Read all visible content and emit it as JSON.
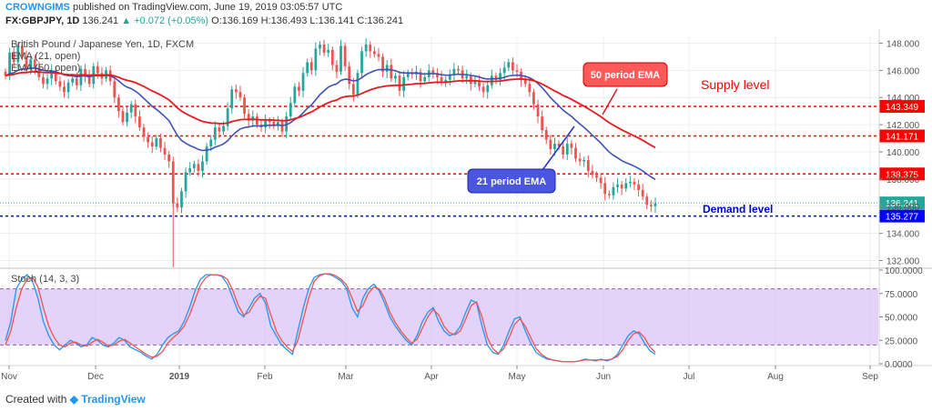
{
  "header": {
    "author": "CROWNGIMS",
    "published_text": "published on TradingView.com, June 19, 2019 03:05:57 UTC",
    "symbol": "FX:GBPJPY, 1D",
    "price": "136.241",
    "change": "▲ +0.072 (+0.05%)",
    "ohlc": "O:136.169 H:136.493 L:136.141 C:136.241"
  },
  "legend": {
    "title": "British Pound / Japanese Yen, 1D, FXCM",
    "ema_fast": "EMA (21, open)",
    "ema_slow": "EMA (50, open)"
  },
  "annotations": {
    "ema50_label": "50 period EMA",
    "ema21_label": "21 period EMA",
    "supply_label": "Supply level",
    "demand_label": "Demand level"
  },
  "colors": {
    "up": "#26a69a",
    "down": "#ef5350",
    "level_red": "#ff0000",
    "level_blue": "#0000ff",
    "ema_fast": "#3f51b5",
    "ema_slow": "#e31b23",
    "stoch_k": "#2196f3",
    "stoch_d": "#ef5350",
    "stoch_band": "#d9c3f7"
  },
  "footer": {
    "created_with": "Created with",
    "brand": "TradingView"
  },
  "chart_data": [
    {
      "type": "candlestick",
      "title": "British Pound / Japanese Yen, 1D, FXCM",
      "x_labels": [
        "Nov",
        "Dec",
        "2019",
        "Feb",
        "Mar",
        "Apr",
        "May",
        "Jun",
        "Jul",
        "Aug",
        "Sep"
      ],
      "y_ticks": [
        "148.000",
        "146.000",
        "144.000",
        "142.000",
        "140.000",
        "138.000",
        "136.000",
        "134.000",
        "132.000"
      ],
      "ylim": [
        131.5,
        148.5
      ],
      "horizontal_levels": [
        {
          "value": 143.349,
          "label": "143.349",
          "color": "#ff0000"
        },
        {
          "value": 141.171,
          "label": "141.171",
          "color": "#ff0000"
        },
        {
          "value": 138.375,
          "label": "138.375",
          "color": "#ff0000"
        },
        {
          "value": 135.277,
          "label": "135.277",
          "color": "#0000ff"
        }
      ],
      "last_price": {
        "value": 136.241,
        "label": "136.241"
      },
      "closes": [
        145.6,
        147.3,
        146.6,
        147.8,
        147.0,
        146.1,
        146.8,
        146.2,
        145.5,
        145.0,
        145.4,
        146.0,
        145.2,
        144.8,
        144.4,
        145.1,
        145.4,
        144.9,
        146.1,
        145.6,
        145.0,
        146.3,
        145.8,
        145.4,
        146.0,
        145.2,
        144.0,
        143.0,
        142.2,
        142.9,
        143.5,
        142.6,
        141.8,
        141.1,
        140.7,
        140.4,
        141.0,
        140.3,
        139.8,
        139.3,
        136.2,
        135.9,
        137.1,
        138.5,
        138.8,
        139.1,
        138.6,
        139.3,
        140.4,
        140.9,
        141.8,
        141.5,
        141.9,
        143.2,
        144.6,
        144.4,
        144.0,
        142.8,
        142.3,
        142.6,
        142.0,
        141.8,
        142.3,
        142.2,
        141.9,
        142.2,
        141.5,
        142.6,
        143.6,
        144.8,
        144.5,
        145.8,
        146.6,
        146.0,
        147.6,
        147.9,
        147.3,
        147.5,
        146.4,
        145.9,
        147.8,
        146.3,
        145.0,
        144.2,
        145.8,
        147.4,
        147.9,
        147.4,
        147.2,
        147.0,
        145.9,
        146.4,
        145.4,
        145.6,
        144.5,
        145.5,
        145.8,
        145.7,
        145.9,
        145.2,
        145.5,
        146.0,
        145.8,
        145.5,
        145.1,
        145.3,
        145.7,
        146.1,
        146.0,
        145.4,
        145.6,
        145.0,
        145.2,
        144.8,
        144.4,
        144.9,
        145.6,
        145.3,
        145.8,
        146.2,
        146.6,
        146.0,
        145.9,
        145.3,
        145.0,
        144.4,
        143.5,
        142.6,
        141.6,
        140.9,
        140.2,
        140.6,
        140.4,
        139.8,
        140.6,
        140.3,
        139.5,
        139.3,
        139.4,
        138.6,
        138.3,
        138.1,
        137.7,
        136.9,
        136.8,
        137.4,
        137.6,
        137.3,
        137.7,
        137.8,
        137.6,
        137.2,
        136.7,
        136.1,
        136.0,
        136.2
      ]
    },
    {
      "type": "line",
      "title": "Stoch (14, 3, 3)",
      "y_ticks": [
        "100.0000",
        "75.0000",
        "50.0000",
        "25.0000",
        "0.0000"
      ],
      "ylim": [
        0,
        100
      ],
      "band": [
        20,
        80
      ],
      "series": [
        {
          "name": "%K",
          "values": [
            25,
            45,
            80,
            90,
            95,
            88,
            70,
            45,
            30,
            20,
            15,
            20,
            25,
            22,
            18,
            20,
            28,
            25,
            20,
            18,
            22,
            28,
            25,
            18,
            15,
            12,
            8,
            5,
            10,
            20,
            28,
            32,
            35,
            45,
            60,
            78,
            90,
            95,
            95,
            95,
            93,
            85,
            70,
            55,
            50,
            60,
            70,
            75,
            65,
            40,
            30,
            20,
            15,
            10,
            35,
            60,
            80,
            92,
            95,
            96,
            95,
            92,
            88,
            80,
            60,
            50,
            70,
            80,
            85,
            78,
            65,
            50,
            40,
            32,
            25,
            20,
            30,
            45,
            55,
            60,
            45,
            35,
            30,
            32,
            40,
            55,
            68,
            65,
            40,
            20,
            12,
            10,
            20,
            35,
            48,
            50,
            35,
            22,
            12,
            8,
            5,
            4,
            3,
            2,
            2,
            2,
            3,
            5,
            4,
            3,
            5,
            3,
            5,
            10,
            20,
            30,
            35,
            32,
            22,
            14,
            10
          ]
        },
        {
          "name": "%D",
          "values": [
            20,
            35,
            60,
            80,
            90,
            92,
            82,
            60,
            40,
            28,
            20,
            18,
            22,
            23,
            20,
            19,
            23,
            26,
            23,
            19,
            20,
            24,
            26,
            22,
            18,
            14,
            10,
            7,
            8,
            13,
            22,
            28,
            33,
            40,
            52,
            68,
            84,
            92,
            95,
            95,
            94,
            90,
            78,
            62,
            52,
            55,
            65,
            72,
            70,
            52,
            35,
            25,
            18,
            13,
            25,
            48,
            70,
            88,
            94,
            96,
            96,
            94,
            90,
            84,
            70,
            56,
            62,
            75,
            82,
            80,
            70,
            55,
            44,
            35,
            28,
            22,
            26,
            38,
            50,
            58,
            52,
            40,
            33,
            31,
            35,
            48,
            62,
            66,
            50,
            28,
            16,
            11,
            16,
            28,
            42,
            48,
            40,
            28,
            16,
            10,
            6,
            4,
            3,
            2,
            2,
            2,
            3,
            4,
            4,
            4,
            4,
            4,
            5,
            8,
            15,
            25,
            32,
            34,
            28,
            18,
            12
          ]
        }
      ]
    }
  ]
}
